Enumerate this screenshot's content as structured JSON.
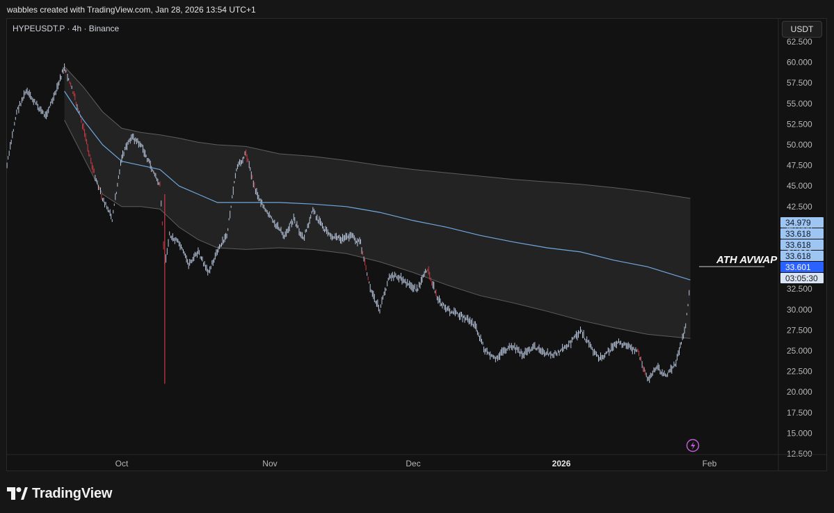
{
  "header": {
    "caption": "wabbles created with TradingView.com, Jan 28, 2026 13:54 UTC+1"
  },
  "chart_header": {
    "symbol": "HYPEUSDT.P · 4h · Binance",
    "currency": "USDT"
  },
  "colors": {
    "background": "#121212",
    "candle_up": "#b9c7df",
    "candle_down": "#d03a44",
    "avwap": "#6fa9df",
    "band_fill": "#262626",
    "band_line": "#5e5e5e",
    "price_tag": "#2962ff"
  },
  "chart_data": {
    "type": "line",
    "title": "HYPEUSDT.P · 4h · Binance",
    "ylim": [
      12.5,
      63.75
    ],
    "y_ticks": [
      12.5,
      15,
      17.5,
      20,
      22.5,
      25,
      27.5,
      30,
      32.5,
      35,
      37.5,
      40,
      42.5,
      45,
      47.5,
      50,
      52.5,
      55,
      57.5,
      60,
      62.5
    ],
    "y_tick_labels": [
      "12.500",
      "15.000",
      "17.500",
      "20.000",
      "22.500",
      "25.000",
      "27.500",
      "30.000",
      "32.500",
      "35.000",
      "37.500",
      "40.000",
      "42.500",
      "45.000",
      "47.500",
      "50.000",
      "52.500",
      "55.000",
      "57.500",
      "60.000",
      "62.500"
    ],
    "x_ticks": [
      "2025-10-01",
      "2025-11-01",
      "2025-12-01",
      "2026-01-01",
      "2026-02-01"
    ],
    "x_tick_labels": [
      "Oct",
      "Nov",
      "Dec",
      "2026",
      "Feb"
    ],
    "price_labels": [
      "34.979",
      "33.618",
      "33.618",
      "33.618",
      "33.601",
      "03:05:30"
    ],
    "annotation": "ATH AVWAP",
    "series": [
      {
        "key": "price",
        "x": [
          "2025-09-07",
          "2025-09-09",
          "2025-09-11",
          "2025-09-13",
          "2025-09-15",
          "2025-09-17",
          "2025-09-19",
          "2025-09-21",
          "2025-09-23",
          "2025-09-25",
          "2025-09-27",
          "2025-09-29",
          "2025-10-01",
          "2025-10-03",
          "2025-10-05",
          "2025-10-07",
          "2025-10-09",
          "2025-10-10",
          "2025-10-11",
          "2025-10-13",
          "2025-10-15",
          "2025-10-17",
          "2025-10-19",
          "2025-10-21",
          "2025-10-23",
          "2025-10-25",
          "2025-10-27",
          "2025-10-29",
          "2025-10-31",
          "2025-11-02",
          "2025-11-04",
          "2025-11-06",
          "2025-11-08",
          "2025-11-10",
          "2025-11-12",
          "2025-11-14",
          "2025-11-16",
          "2025-11-18",
          "2025-11-20",
          "2025-11-22",
          "2025-11-24",
          "2025-11-26",
          "2025-11-28",
          "2025-11-30",
          "2025-12-02",
          "2025-12-04",
          "2025-12-06",
          "2025-12-08",
          "2025-12-10",
          "2025-12-12",
          "2025-12-14",
          "2025-12-16",
          "2025-12-18",
          "2025-12-20",
          "2025-12-22",
          "2025-12-24",
          "2025-12-26",
          "2025-12-28",
          "2025-12-30",
          "2026-01-01",
          "2026-01-03",
          "2026-01-05",
          "2026-01-07",
          "2026-01-09",
          "2026-01-11",
          "2026-01-13",
          "2026-01-15",
          "2026-01-17",
          "2026-01-19",
          "2026-01-21",
          "2026-01-23",
          "2026-01-25",
          "2026-01-27",
          "2026-01-28"
        ],
        "y": [
          47.5,
          54,
          56.5,
          55,
          53.5,
          56,
          59.5,
          56,
          52,
          47,
          43.5,
          41,
          48.5,
          51,
          50,
          47.5,
          45,
          35.5,
          39,
          38,
          35.5,
          37,
          34.5,
          37,
          39,
          47,
          49,
          44.5,
          42,
          40.5,
          39,
          41,
          38.5,
          42,
          40,
          39,
          38.5,
          39,
          38,
          32.5,
          30,
          34,
          34,
          33,
          32.5,
          35,
          31.5,
          30,
          29.5,
          29,
          28,
          25,
          24,
          25,
          25.5,
          24.5,
          25.5,
          25,
          24.5,
          25,
          26,
          27.5,
          25.5,
          24,
          25,
          26,
          25.5,
          25,
          21.5,
          23,
          22,
          23.5,
          28,
          33.6
        ]
      },
      {
        "key": "avwap",
        "name": "ATH AVWAP",
        "x": [
          "2025-09-19",
          "2025-09-23",
          "2025-09-27",
          "2025-10-01",
          "2025-10-05",
          "2025-10-09",
          "2025-10-13",
          "2025-10-17",
          "2025-10-21",
          "2025-10-27",
          "2025-11-03",
          "2025-11-10",
          "2025-11-17",
          "2025-11-24",
          "2025-12-01",
          "2025-12-08",
          "2025-12-15",
          "2025-12-22",
          "2025-12-29",
          "2026-01-05",
          "2026-01-12",
          "2026-01-19",
          "2026-01-28"
        ],
        "y": [
          56.5,
          53,
          50,
          48,
          47.5,
          47,
          45,
          44,
          43,
          43,
          43,
          42.8,
          42.5,
          41.8,
          40.8,
          40,
          39,
          38.2,
          37.5,
          37,
          36,
          35.2,
          33.6
        ]
      },
      {
        "key": "upper_band",
        "x": [
          "2025-09-19",
          "2025-09-23",
          "2025-09-27",
          "2025-10-01",
          "2025-10-05",
          "2025-10-09",
          "2025-10-13",
          "2025-10-17",
          "2025-10-21",
          "2025-10-27",
          "2025-11-03",
          "2025-11-10",
          "2025-11-17",
          "2025-11-24",
          "2025-12-01",
          "2025-12-08",
          "2025-12-15",
          "2025-12-22",
          "2025-12-29",
          "2026-01-05",
          "2026-01-12",
          "2026-01-19",
          "2026-01-28"
        ],
        "y": [
          59.5,
          57,
          54,
          52,
          51.5,
          51.2,
          50.8,
          50.3,
          50,
          49.8,
          48.9,
          48.6,
          48.1,
          47.5,
          47,
          46.6,
          46.2,
          45.8,
          45.5,
          45.2,
          44.8,
          44.3,
          43.5
        ]
      },
      {
        "key": "lower_band",
        "x": [
          "2025-09-19",
          "2025-09-23",
          "2025-09-27",
          "2025-10-01",
          "2025-10-05",
          "2025-10-09",
          "2025-10-13",
          "2025-10-17",
          "2025-10-21",
          "2025-10-27",
          "2025-11-03",
          "2025-11-10",
          "2025-11-17",
          "2025-11-24",
          "2025-12-01",
          "2025-12-08",
          "2025-12-15",
          "2025-12-22",
          "2025-12-29",
          "2026-01-05",
          "2026-01-12",
          "2026-01-19",
          "2026-01-28"
        ],
        "y": [
          53,
          48.5,
          44,
          42.5,
          42.5,
          42.2,
          40,
          38.5,
          37.5,
          37.3,
          37.5,
          37.3,
          36.8,
          35.8,
          34.5,
          33,
          31.7,
          30.8,
          29.8,
          28.7,
          27.8,
          27,
          26.5
        ]
      }
    ]
  }
}
